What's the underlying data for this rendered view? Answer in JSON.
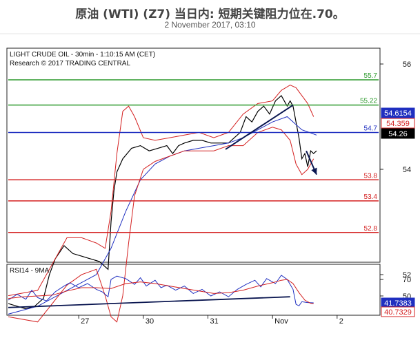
{
  "header": {
    "title": "原油 (WTI) (Z7) 当日内: 短期关键阻力位在.70。",
    "subtitle": "2 November 2017, 03:10"
  },
  "chart_data": [
    {
      "type": "line",
      "instrument_label": "LIGHT CRUDE OIL - 30min - 1:10:15 AM (CET)",
      "credit": "Research © 2017 TRADING CENTRAL",
      "ylim": [
        51.0,
        56.2
      ],
      "xlim": [
        0,
        210
      ],
      "y_ticks": [
        52,
        54,
        56
      ],
      "x_ticks": [
        {
          "x": 48,
          "label": "27"
        },
        {
          "x": 92,
          "label": "30"
        },
        {
          "x": 136,
          "label": "31"
        },
        {
          "x": 180,
          "label": "Nov"
        },
        {
          "x": 224,
          "label": "2"
        }
      ],
      "grid": false,
      "levels": [
        {
          "value": 55.7,
          "label": "55.7",
          "color": "#2e9a2e"
        },
        {
          "value": 55.22,
          "label": "55.22",
          "color": "#2e9a2e"
        },
        {
          "value": 54.7,
          "label": "54.7",
          "color": "#1f2fc0"
        },
        {
          "value": 53.8,
          "label": "53.8",
          "color": "#d42020"
        },
        {
          "value": 53.4,
          "label": "53.4",
          "color": "#d42020"
        },
        {
          "value": 52.8,
          "label": "52.8",
          "color": "#d42020"
        }
      ],
      "price_tags": [
        {
          "value": 54.6154,
          "label": "54.6154",
          "bg": "#1f2fc0",
          "fg": "#ffffff"
        },
        {
          "value": 54.359,
          "label": "54.359",
          "bg": "#ffffff",
          "fg": "#d42020"
        },
        {
          "value": 54.26,
          "label": "54.26",
          "bg": "#000000",
          "fg": "#ffffff"
        }
      ],
      "series": [
        {
          "role": "price",
          "color": "#000000",
          "x": [
            0,
            6,
            12,
            18,
            24,
            28,
            32,
            38,
            44,
            50,
            56,
            62,
            68,
            70,
            72,
            74,
            78,
            84,
            90,
            96,
            102,
            108,
            112,
            116,
            120,
            126,
            132,
            138,
            144,
            150,
            154,
            158,
            162,
            166,
            170,
            174,
            178,
            182,
            186,
            190,
            192,
            194,
            196,
            198,
            200,
            202,
            204,
            206,
            208,
            210
          ],
          "values": [
            51.45,
            51.4,
            51.35,
            51.4,
            51.55,
            52.0,
            52.3,
            52.55,
            52.4,
            52.35,
            52.3,
            52.25,
            52.1,
            53.0,
            53.6,
            53.95,
            54.2,
            54.4,
            54.45,
            54.35,
            54.4,
            54.45,
            54.3,
            54.45,
            54.5,
            54.55,
            54.55,
            54.5,
            54.5,
            54.5,
            54.6,
            54.7,
            55.0,
            54.9,
            55.1,
            55.2,
            55.05,
            55.3,
            55.4,
            55.2,
            55.3,
            55.2,
            54.9,
            54.6,
            54.2,
            54.3,
            54.05,
            54.35,
            54.3,
            54.35
          ]
        },
        {
          "role": "moving-average",
          "color": "#1f2fc0",
          "x": [
            0,
            20,
            40,
            60,
            70,
            80,
            90,
            100,
            110,
            120,
            130,
            140,
            150,
            160,
            170,
            180,
            190,
            196,
            200,
            205,
            210
          ],
          "values": [
            51.25,
            51.4,
            51.7,
            52.0,
            52.5,
            53.2,
            53.8,
            54.1,
            54.25,
            54.35,
            54.4,
            54.45,
            54.5,
            54.6,
            54.75,
            54.9,
            55.0,
            54.85,
            54.75,
            54.7,
            54.65
          ]
        },
        {
          "role": "bollinger-upper",
          "color": "#d42020",
          "x": [
            0,
            20,
            40,
            50,
            60,
            66,
            70,
            74,
            78,
            82,
            86,
            92,
            100,
            110,
            120,
            130,
            140,
            150,
            160,
            170,
            180,
            186,
            192,
            196,
            200,
            204,
            208
          ],
          "values": [
            51.6,
            51.7,
            52.7,
            52.7,
            52.6,
            52.5,
            53.2,
            54.3,
            55.1,
            55.2,
            55.0,
            54.6,
            54.55,
            54.6,
            54.65,
            54.7,
            54.6,
            54.7,
            55.05,
            55.25,
            55.3,
            55.5,
            55.6,
            55.55,
            55.4,
            55.25,
            55.0
          ]
        },
        {
          "role": "bollinger-lower",
          "color": "#d42020",
          "x": [
            0,
            20,
            40,
            50,
            60,
            66,
            70,
            74,
            78,
            82,
            86,
            92,
            100,
            110,
            120,
            130,
            140,
            150,
            160,
            170,
            180,
            186,
            192,
            196,
            200,
            204,
            208
          ],
          "values": [
            51.2,
            51.1,
            51.8,
            52.0,
            52.1,
            51.6,
            51.2,
            51.1,
            51.6,
            52.6,
            53.5,
            54.0,
            54.15,
            54.25,
            54.35,
            54.35,
            54.35,
            54.45,
            54.45,
            54.7,
            54.8,
            54.75,
            54.55,
            54.1,
            53.9,
            54.0,
            54.2
          ]
        }
      ],
      "annotations": [
        {
          "kind": "trendline",
          "from": [
            148,
            54.38
          ],
          "to": [
            194,
            55.22
          ],
          "color": "#0a1650"
        },
        {
          "kind": "forecast-arrow",
          "from": [
            203,
            54.35
          ],
          "to": [
            210,
            53.9
          ],
          "color": "#0a1650"
        }
      ]
    },
    {
      "type": "line",
      "label": "RSI14 - 9MA",
      "ylim": [
        30,
        85
      ],
      "xlim": [
        0,
        210
      ],
      "y_ticks": [
        50,
        70
      ],
      "price_tags": [
        {
          "value": 41.7383,
          "label": "41.7383",
          "bg": "#1f2fc0",
          "fg": "#ffffff"
        },
        {
          "value": 40.7329,
          "label": "40.7329",
          "bg": "#ffffff",
          "fg": "#d42020"
        }
      ],
      "series": [
        {
          "role": "rsi",
          "color": "#1f2fc0",
          "x": [
            0,
            6,
            12,
            16,
            20,
            26,
            32,
            38,
            42,
            48,
            54,
            60,
            64,
            68,
            70,
            74,
            80,
            86,
            90,
            94,
            100,
            104,
            108,
            114,
            120,
            126,
            132,
            138,
            144,
            150,
            156,
            162,
            168,
            172,
            176,
            182,
            186,
            190,
            194,
            196,
            198,
            200,
            204,
            208
          ],
          "values": [
            45,
            52,
            46,
            57,
            48,
            44,
            55,
            62,
            66,
            60,
            65,
            58,
            55,
            49,
            70,
            74,
            71,
            64,
            72,
            62,
            69,
            60,
            63,
            57,
            62,
            53,
            58,
            50,
            55,
            49,
            58,
            64,
            69,
            61,
            71,
            65,
            75,
            70,
            58,
            40,
            38,
            43,
            42,
            41.7
          ]
        },
        {
          "role": "rsi-ma",
          "color": "#d42020",
          "x": [
            0,
            10,
            20,
            30,
            40,
            50,
            60,
            70,
            80,
            90,
            100,
            110,
            120,
            130,
            140,
            150,
            160,
            170,
            180,
            186,
            190,
            194,
            198,
            202,
            206,
            208
          ],
          "values": [
            47,
            49,
            50,
            51,
            56,
            60,
            60,
            59,
            65,
            67,
            65,
            62,
            59,
            56,
            53,
            54,
            57,
            62,
            66,
            69,
            70,
            65,
            54,
            45,
            41,
            40.7
          ]
        }
      ],
      "annotations": [
        {
          "kind": "trendline",
          "from": [
            0,
            36
          ],
          "to": [
            192,
            49
          ],
          "color": "#0a1650"
        }
      ]
    }
  ]
}
